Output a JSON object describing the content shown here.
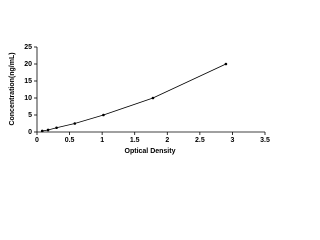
{
  "chart_data": {
    "type": "line",
    "markers": true,
    "color": "#000000",
    "xlabel": "Optical Density",
    "ylabel": "Concentration(ng/mL)",
    "x": [
      0.08,
      0.17,
      0.3,
      0.58,
      1.02,
      1.78,
      2.9
    ],
    "values": [
      0.3,
      0.6,
      1.25,
      2.5,
      5,
      10,
      20
    ],
    "xlim": [
      0,
      3.5
    ],
    "xticks": [
      0,
      0.5,
      1,
      1.5,
      2,
      2.5,
      3,
      3.5
    ],
    "ylim": [
      0,
      25
    ],
    "yticks": [
      0,
      5,
      10,
      15,
      20,
      25
    ],
    "grid": false
  }
}
